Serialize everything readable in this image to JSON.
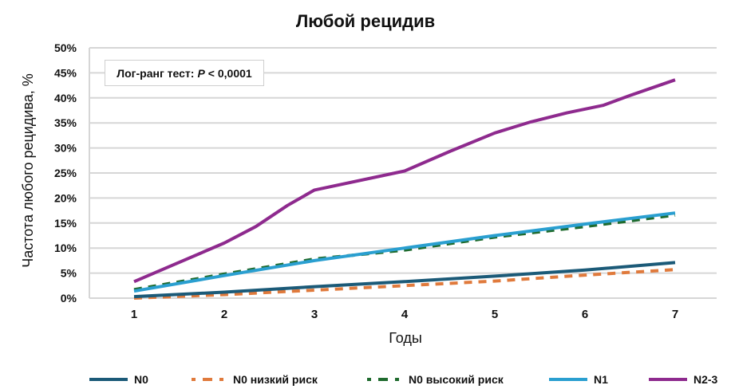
{
  "chart_data": {
    "type": "line",
    "title": "Любой рецидив",
    "xlabel": "Годы",
    "ylabel": "Частота любого рецидива, %",
    "x_ticks": [
      "1",
      "2",
      "3",
      "4",
      "5",
      "6",
      "7"
    ],
    "y_ticks": [
      "0%",
      "5%",
      "10%",
      "15%",
      "20%",
      "25%",
      "30%",
      "35%",
      "40%",
      "45%",
      "50%"
    ],
    "xlim": [
      0.5,
      7.45
    ],
    "ylim": [
      0,
      50
    ],
    "grid": "horizontal",
    "legend_position": "bottom",
    "annotation": {
      "prefix": "Лог-ранг тест: ",
      "p": "P",
      "suffix": " < 0,0001"
    },
    "series": [
      {
        "name": "N0",
        "color": "#1b5a78",
        "style": "solid",
        "x": [
          1,
          2,
          3,
          4,
          5,
          6,
          7
        ],
        "values": [
          0.3,
          1.2,
          2.3,
          3.3,
          4.4,
          5.6,
          7.1
        ]
      },
      {
        "name": "N0 низкий риск",
        "color": "#e07a3c",
        "style": "dashed",
        "x": [
          1,
          2,
          3,
          4,
          5,
          6,
          7
        ],
        "values": [
          0.0,
          0.7,
          1.6,
          2.5,
          3.4,
          4.6,
          5.7
        ]
      },
      {
        "name": "N0 высокий риск",
        "color": "#1f6b2e",
        "style": "dashed",
        "x": [
          1,
          2,
          3,
          4,
          5,
          6,
          7
        ],
        "values": [
          1.7,
          4.8,
          7.8,
          9.6,
          12.2,
          14.3,
          16.6
        ]
      },
      {
        "name": "N1",
        "color": "#2a9fd0",
        "style": "solid",
        "x": [
          1,
          2,
          3,
          4,
          5,
          6,
          7
        ],
        "values": [
          1.4,
          4.5,
          7.5,
          10.0,
          12.5,
          14.8,
          17.0
        ]
      },
      {
        "name": "N2-3",
        "color": "#8e2a8e",
        "style": "solid",
        "x": [
          1,
          2,
          2.35,
          2.7,
          3,
          4,
          4.5,
          5,
          5.4,
          5.8,
          6.2,
          6.5,
          7
        ],
        "values": [
          3.3,
          11.0,
          14.3,
          18.5,
          21.6,
          25.4,
          29.3,
          33.0,
          35.2,
          37.0,
          38.5,
          40.5,
          43.6
        ]
      }
    ]
  }
}
